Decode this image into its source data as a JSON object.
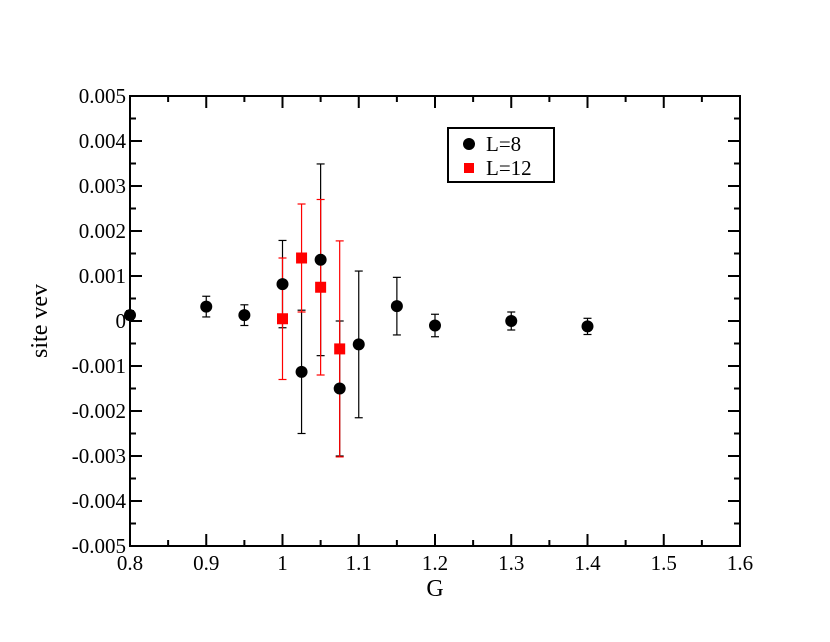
{
  "chart_data": {
    "type": "scatter",
    "title": "",
    "xlabel": "G",
    "ylabel": "site vev",
    "xlim": [
      0.8,
      1.6
    ],
    "ylim": [
      -0.005,
      0.005
    ],
    "x_ticks": [
      0.8,
      0.9,
      1.0,
      1.1,
      1.2,
      1.3,
      1.4,
      1.5,
      1.6
    ],
    "x_tick_labels": [
      "0.8",
      "0.9",
      "1",
      "1.1",
      "1.2",
      "1.3",
      "1.4",
      "1.5",
      "1.6"
    ],
    "y_ticks": [
      0.005,
      0.004,
      0.003,
      0.002,
      0.001,
      0,
      -0.001,
      -0.002,
      -0.003,
      -0.004,
      -0.005
    ],
    "y_tick_labels": [
      "0.005",
      "0.004",
      "0.003",
      "0.002",
      "0.001",
      "0",
      "-0.001",
      "-0.002",
      "-0.003",
      "-0.004",
      "-0.005"
    ],
    "grid": false,
    "legend_position": "top-right",
    "series": [
      {
        "name": "L=8",
        "marker": "circle",
        "color": "#000000",
        "points": [
          {
            "x": 0.8,
            "y": 0.00013,
            "err": 0.0001
          },
          {
            "x": 0.9,
            "y": 0.00032,
            "err": 0.00023
          },
          {
            "x": 0.95,
            "y": 0.00013,
            "err": 0.00023
          },
          {
            "x": 1.0,
            "y": 0.00082,
            "err": 0.00097
          },
          {
            "x": 1.025,
            "y": -0.00113,
            "err": 0.00137
          },
          {
            "x": 1.05,
            "y": 0.00136,
            "err": 0.00213
          },
          {
            "x": 1.075,
            "y": -0.0015,
            "err": 0.0015
          },
          {
            "x": 1.1,
            "y": -0.00052,
            "err": 0.00163
          },
          {
            "x": 1.15,
            "y": 0.00033,
            "err": 0.00064
          },
          {
            "x": 1.2,
            "y": -0.0001,
            "err": 0.00025
          },
          {
            "x": 1.3,
            "y": 0.0,
            "err": 0.0002
          },
          {
            "x": 1.4,
            "y": -0.00012,
            "err": 0.00018
          }
        ]
      },
      {
        "name": "L=12",
        "marker": "square",
        "color": "#ff0000",
        "points": [
          {
            "x": 1.0,
            "y": 5e-05,
            "err": 0.00135
          },
          {
            "x": 1.025,
            "y": 0.0014,
            "err": 0.0012
          },
          {
            "x": 1.05,
            "y": 0.00075,
            "err": 0.00195
          },
          {
            "x": 1.075,
            "y": -0.00062,
            "err": 0.0024
          }
        ]
      }
    ]
  }
}
